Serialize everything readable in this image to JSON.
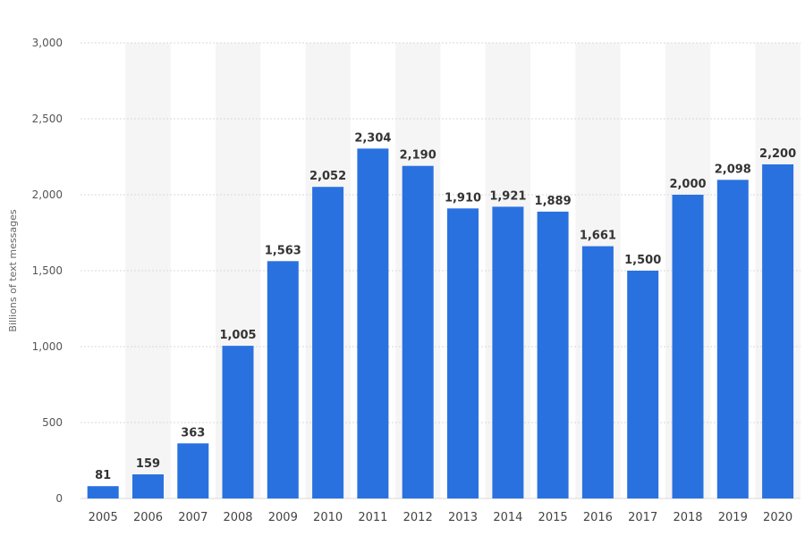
{
  "chart_data": {
    "type": "bar",
    "categories": [
      "2005",
      "2006",
      "2007",
      "2008",
      "2009",
      "2010",
      "2011",
      "2012",
      "2013",
      "2014",
      "2015",
      "2016",
      "2017",
      "2018",
      "2019",
      "2020"
    ],
    "values": [
      81,
      159,
      363,
      1005,
      1563,
      2052,
      2304,
      2190,
      1910,
      1921,
      1889,
      1661,
      1500,
      2000,
      2098,
      2200
    ],
    "value_labels": [
      "81",
      "159",
      "363",
      "1,005",
      "1,563",
      "2,052",
      "2,304",
      "2,190",
      "1,910",
      "1,921",
      "1,889",
      "1,661",
      "1,500",
      "2,000",
      "2,098",
      "2,200"
    ],
    "ylabel": "Billions of text messages",
    "ylim": [
      0,
      3000
    ],
    "yticks": [
      0,
      500,
      1000,
      1500,
      2000,
      2500,
      3000
    ],
    "ytick_labels": [
      "0",
      "500",
      "1,000",
      "1,500",
      "2,000",
      "2,500",
      "3,000"
    ],
    "grid": true,
    "bar_color": "#2a71e0",
    "band_color": "#f5f5f5",
    "grid_color": "#d9d9d9"
  }
}
